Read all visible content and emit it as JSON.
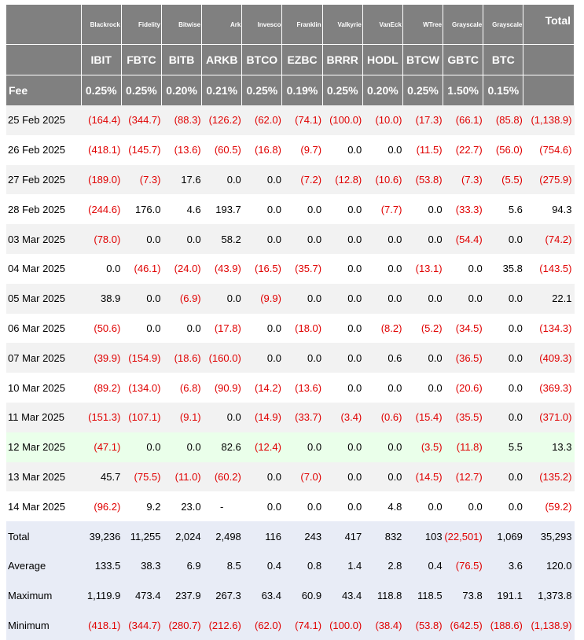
{
  "issuers": [
    "Blackrock",
    "Fidelity",
    "Bitwise",
    "Ark",
    "Invesco",
    "Franklin",
    "Valkyrie",
    "VanEck",
    "WTree",
    "Grayscale",
    "Grayscale"
  ],
  "total_label": "Total",
  "tickers": [
    "IBIT",
    "FBTC",
    "BITB",
    "ARKB",
    "BTCO",
    "EZBC",
    "BRRR",
    "HODL",
    "BTCW",
    "GBTC",
    "BTC"
  ],
  "fee_label": "Fee",
  "fees": [
    "0.25%",
    "0.25%",
    "0.20%",
    "0.21%",
    "0.25%",
    "0.19%",
    "0.25%",
    "0.20%",
    "0.25%",
    "1.50%",
    "0.15%"
  ],
  "rows": [
    {
      "date": "25 Feb 2025",
      "values": [
        "(164.4)",
        "(344.7)",
        "(88.3)",
        "(126.2)",
        "(62.0)",
        "(74.1)",
        "(100.0)",
        "(10.0)",
        "(17.3)",
        "(66.1)",
        "(85.8)",
        "(1,138.9)"
      ]
    },
    {
      "date": "26 Feb 2025",
      "values": [
        "(418.1)",
        "(145.7)",
        "(13.6)",
        "(60.5)",
        "(16.8)",
        "(9.7)",
        "0.0",
        "0.0",
        "(11.5)",
        "(22.7)",
        "(56.0)",
        "(754.6)"
      ]
    },
    {
      "date": "27 Feb 2025",
      "values": [
        "(189.0)",
        "(7.3)",
        "17.6",
        "0.0",
        "0.0",
        "(7.2)",
        "(12.8)",
        "(10.6)",
        "(53.8)",
        "(7.3)",
        "(5.5)",
        "(275.9)"
      ]
    },
    {
      "date": "28 Feb 2025",
      "values": [
        "(244.6)",
        "176.0",
        "4.6",
        "193.7",
        "0.0",
        "0.0",
        "0.0",
        "(7.7)",
        "0.0",
        "(33.3)",
        "5.6",
        "94.3"
      ]
    },
    {
      "date": "03 Mar 2025",
      "values": [
        "(78.0)",
        "0.0",
        "0.0",
        "58.2",
        "0.0",
        "0.0",
        "0.0",
        "0.0",
        "0.0",
        "(54.4)",
        "0.0",
        "(74.2)"
      ]
    },
    {
      "date": "04 Mar 2025",
      "values": [
        "0.0",
        "(46.1)",
        "(24.0)",
        "(43.9)",
        "(16.5)",
        "(35.7)",
        "0.0",
        "0.0",
        "(13.1)",
        "0.0",
        "35.8",
        "(143.5)"
      ]
    },
    {
      "date": "05 Mar 2025",
      "values": [
        "38.9",
        "0.0",
        "(6.9)",
        "0.0",
        "(9.9)",
        "0.0",
        "0.0",
        "0.0",
        "0.0",
        "0.0",
        "0.0",
        "22.1"
      ]
    },
    {
      "date": "06 Mar 2025",
      "values": [
        "(50.6)",
        "0.0",
        "0.0",
        "(17.8)",
        "0.0",
        "(18.0)",
        "0.0",
        "(8.2)",
        "(5.2)",
        "(34.5)",
        "0.0",
        "(134.3)"
      ]
    },
    {
      "date": "07 Mar 2025",
      "values": [
        "(39.9)",
        "(154.9)",
        "(18.6)",
        "(160.0)",
        "0.0",
        "0.0",
        "0.0",
        "0.6",
        "0.0",
        "(36.5)",
        "0.0",
        "(409.3)"
      ]
    },
    {
      "date": "10 Mar 2025",
      "values": [
        "(89.2)",
        "(134.0)",
        "(6.8)",
        "(90.9)",
        "(14.2)",
        "(13.6)",
        "0.0",
        "0.0",
        "0.0",
        "(20.6)",
        "0.0",
        "(369.3)"
      ]
    },
    {
      "date": "11 Mar 2025",
      "values": [
        "(151.3)",
        "(107.1)",
        "(9.1)",
        "0.0",
        "(14.9)",
        "(33.7)",
        "(3.4)",
        "(0.6)",
        "(15.4)",
        "(35.5)",
        "0.0",
        "(371.0)"
      ]
    },
    {
      "date": "12 Mar 2025",
      "values": [
        "(47.1)",
        "0.0",
        "0.0",
        "82.6",
        "(12.4)",
        "0.0",
        "0.0",
        "0.0",
        "(3.5)",
        "(11.8)",
        "5.5",
        "13.3"
      ]
    },
    {
      "date": "13 Mar 2025",
      "values": [
        "45.7",
        "(75.5)",
        "(11.0)",
        "(60.2)",
        "0.0",
        "(7.0)",
        "0.0",
        "0.0",
        "(14.5)",
        "(12.7)",
        "0.0",
        "(135.2)"
      ]
    },
    {
      "date": "14 Mar 2025",
      "values": [
        "(96.2)",
        "9.2",
        "23.0",
        "-",
        "0.0",
        "0.0",
        "0.0",
        "4.8",
        "0.0",
        "0.0",
        "0.0",
        "(59.2)"
      ]
    }
  ],
  "summary": [
    {
      "label": "Total",
      "values": [
        "39,236",
        "11,255",
        "2,024",
        "2,498",
        "116",
        "243",
        "417",
        "832",
        "103",
        "(22,501)",
        "1,069",
        "35,293"
      ]
    },
    {
      "label": "Average",
      "values": [
        "133.5",
        "38.3",
        "6.9",
        "8.5",
        "0.4",
        "0.8",
        "1.4",
        "2.8",
        "0.4",
        "(76.5)",
        "3.6",
        "120.0"
      ]
    },
    {
      "label": "Maximum",
      "values": [
        "1,119.9",
        "473.4",
        "237.9",
        "267.3",
        "63.4",
        "60.9",
        "43.4",
        "118.8",
        "118.5",
        "73.8",
        "191.1",
        "1,373.8"
      ]
    },
    {
      "label": "Minimum",
      "values": [
        "(418.1)",
        "(344.7)",
        "(280.7)",
        "(212.6)",
        "(62.0)",
        "(74.1)",
        "(100.0)",
        "(38.4)",
        "(53.8)",
        "(642.5)",
        "(188.6)",
        "(1,138.9)"
      ]
    }
  ],
  "highlight_row_index": 11,
  "colors": {
    "header_bg": "#808080",
    "negative": "#e00000",
    "summary_bg": "#e8ecf6",
    "highlight_bg": "#eaffea",
    "stripe_bg": "#f2f2f2"
  }
}
